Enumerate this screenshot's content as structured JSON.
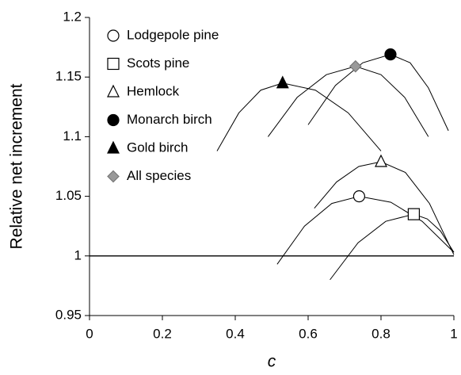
{
  "chart_data": {
    "type": "line",
    "y_label": "Relative net increment",
    "x_label": "c",
    "xlim": [
      0,
      1
    ],
    "xticks": [
      0,
      0.2,
      0.4,
      0.6,
      0.8,
      1
    ],
    "ylim": [
      0.95,
      1.2
    ],
    "yticks": [
      0.95,
      1,
      1.05,
      1.1,
      1.15,
      1.2
    ],
    "hline": 1,
    "grid": false,
    "legend": "upper-left",
    "series": [
      {
        "name": "Lodgepole pine",
        "marker": "circle",
        "filled": false,
        "color": "#000000",
        "x": [
          0.515,
          0.59,
          0.665,
          0.74,
          0.827,
          0.913,
          1.0
        ],
        "values": [
          0.993,
          1.025,
          1.044,
          1.05,
          1.045,
          1.029,
          1.003
        ]
      },
      {
        "name": "Scots pine",
        "marker": "square",
        "filled": false,
        "color": "#000000",
        "x": [
          0.66,
          0.737,
          0.813,
          0.89,
          0.927,
          0.963,
          1.0
        ],
        "values": [
          0.98,
          1.011,
          1.029,
          1.035,
          1.031,
          1.021,
          1.003
        ]
      },
      {
        "name": "Hemlock",
        "marker": "triangle",
        "filled": false,
        "color": "#000000",
        "x": [
          0.617,
          0.678,
          0.739,
          0.8,
          0.867,
          0.933,
          1.0
        ],
        "values": [
          1.04,
          1.062,
          1.075,
          1.079,
          1.07,
          1.044,
          1.001
        ]
      },
      {
        "name": "Monarch birch",
        "marker": "circle",
        "filled": true,
        "color": "#000000",
        "x": [
          0.6,
          0.675,
          0.75,
          0.826,
          0.88,
          0.93,
          0.985
        ],
        "values": [
          1.11,
          1.143,
          1.162,
          1.169,
          1.162,
          1.141,
          1.105
        ]
      },
      {
        "name": "Gold birch",
        "marker": "triangle",
        "filled": true,
        "color": "#000000",
        "x": [
          0.35,
          0.41,
          0.47,
          0.53,
          0.62,
          0.71,
          0.8
        ],
        "values": [
          1.088,
          1.12,
          1.139,
          1.145,
          1.139,
          1.12,
          1.088
        ]
      },
      {
        "name": "All species",
        "marker": "diamond",
        "filled": true,
        "color": "#999999",
        "x": [
          0.49,
          0.57,
          0.65,
          0.73,
          0.8,
          0.865,
          0.93
        ],
        "values": [
          1.1,
          1.133,
          1.152,
          1.159,
          1.152,
          1.133,
          1.1
        ]
      }
    ]
  }
}
